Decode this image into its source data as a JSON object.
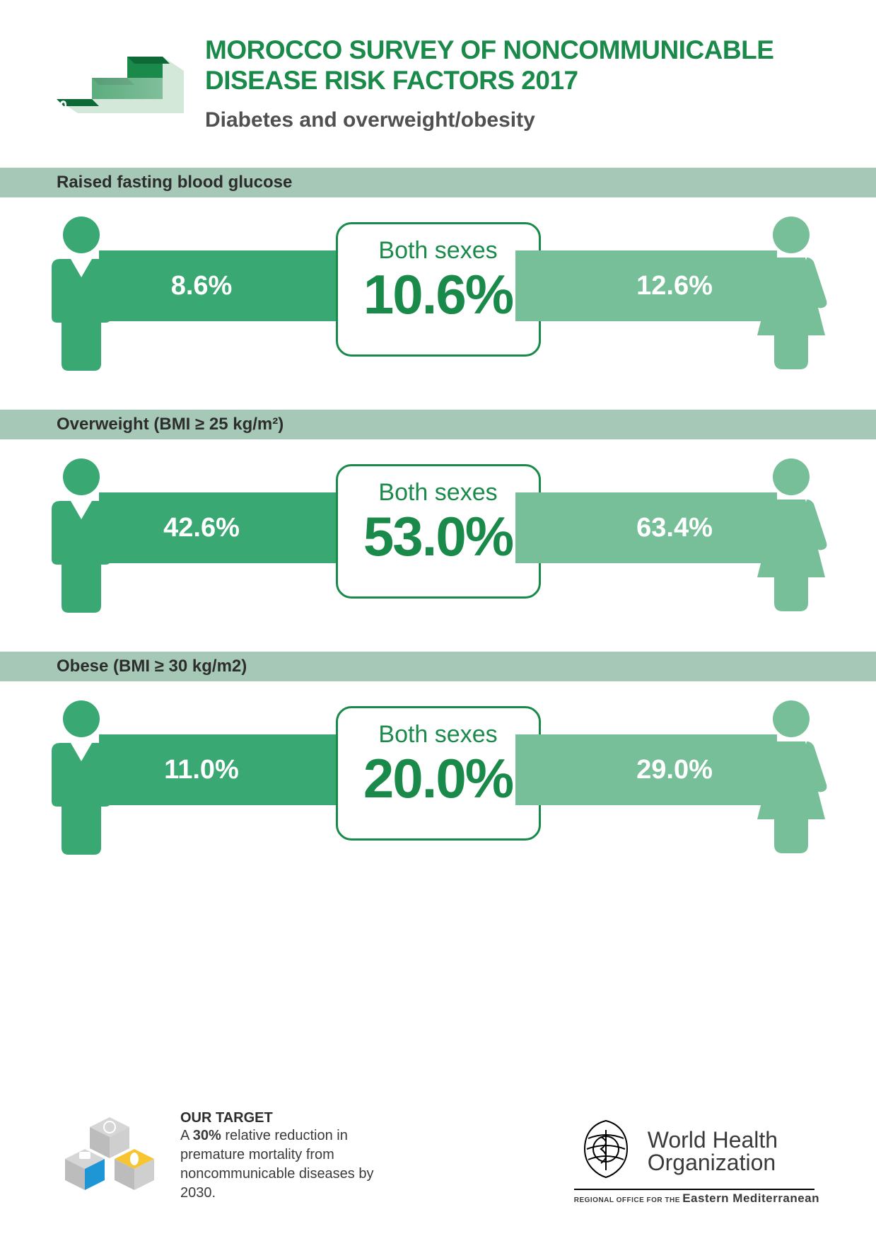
{
  "colors": {
    "accent": "#198a4a",
    "male_bar": "#3aa873",
    "female_bar": "#77bf98",
    "strip_bg": "#a6c9b7",
    "male_icon": "#3aa873",
    "female_icon": "#77bf98",
    "text_dark": "#2d2d2d"
  },
  "header": {
    "title": "MOROCCO SURVEY OF NONCOMMUNICABLE DISEASE RISK FACTORS 2017",
    "subtitle": "Diabetes and overweight/obesity",
    "logo_label": "STEPS"
  },
  "center_label": "Both sexes",
  "sections": [
    {
      "heading": "Raised fasting blood glucose",
      "male": "8.6%",
      "both": "10.6%",
      "female": "12.6%"
    },
    {
      "heading": "Overweight (BMI ≥ 25 kg/m²)",
      "male": "42.6%",
      "both": "53.0%",
      "female": "63.4%"
    },
    {
      "heading": "Obese (BMI ≥ 30 kg/m2)",
      "male": "11.0%",
      "both": "20.0%",
      "female": "29.0%"
    }
  ],
  "footer": {
    "target_heading": "OUR TARGET",
    "target_text_pre": "A ",
    "target_text_bold": "30%",
    "target_text_post": " relative reduction in premature mortality from noncommunicable diseases by 2030.",
    "who_name1": "World Health",
    "who_name2": "Organization",
    "who_regional_pre": "REGIONAL OFFICE FOR THE ",
    "who_regional": "Eastern Mediterranean"
  }
}
